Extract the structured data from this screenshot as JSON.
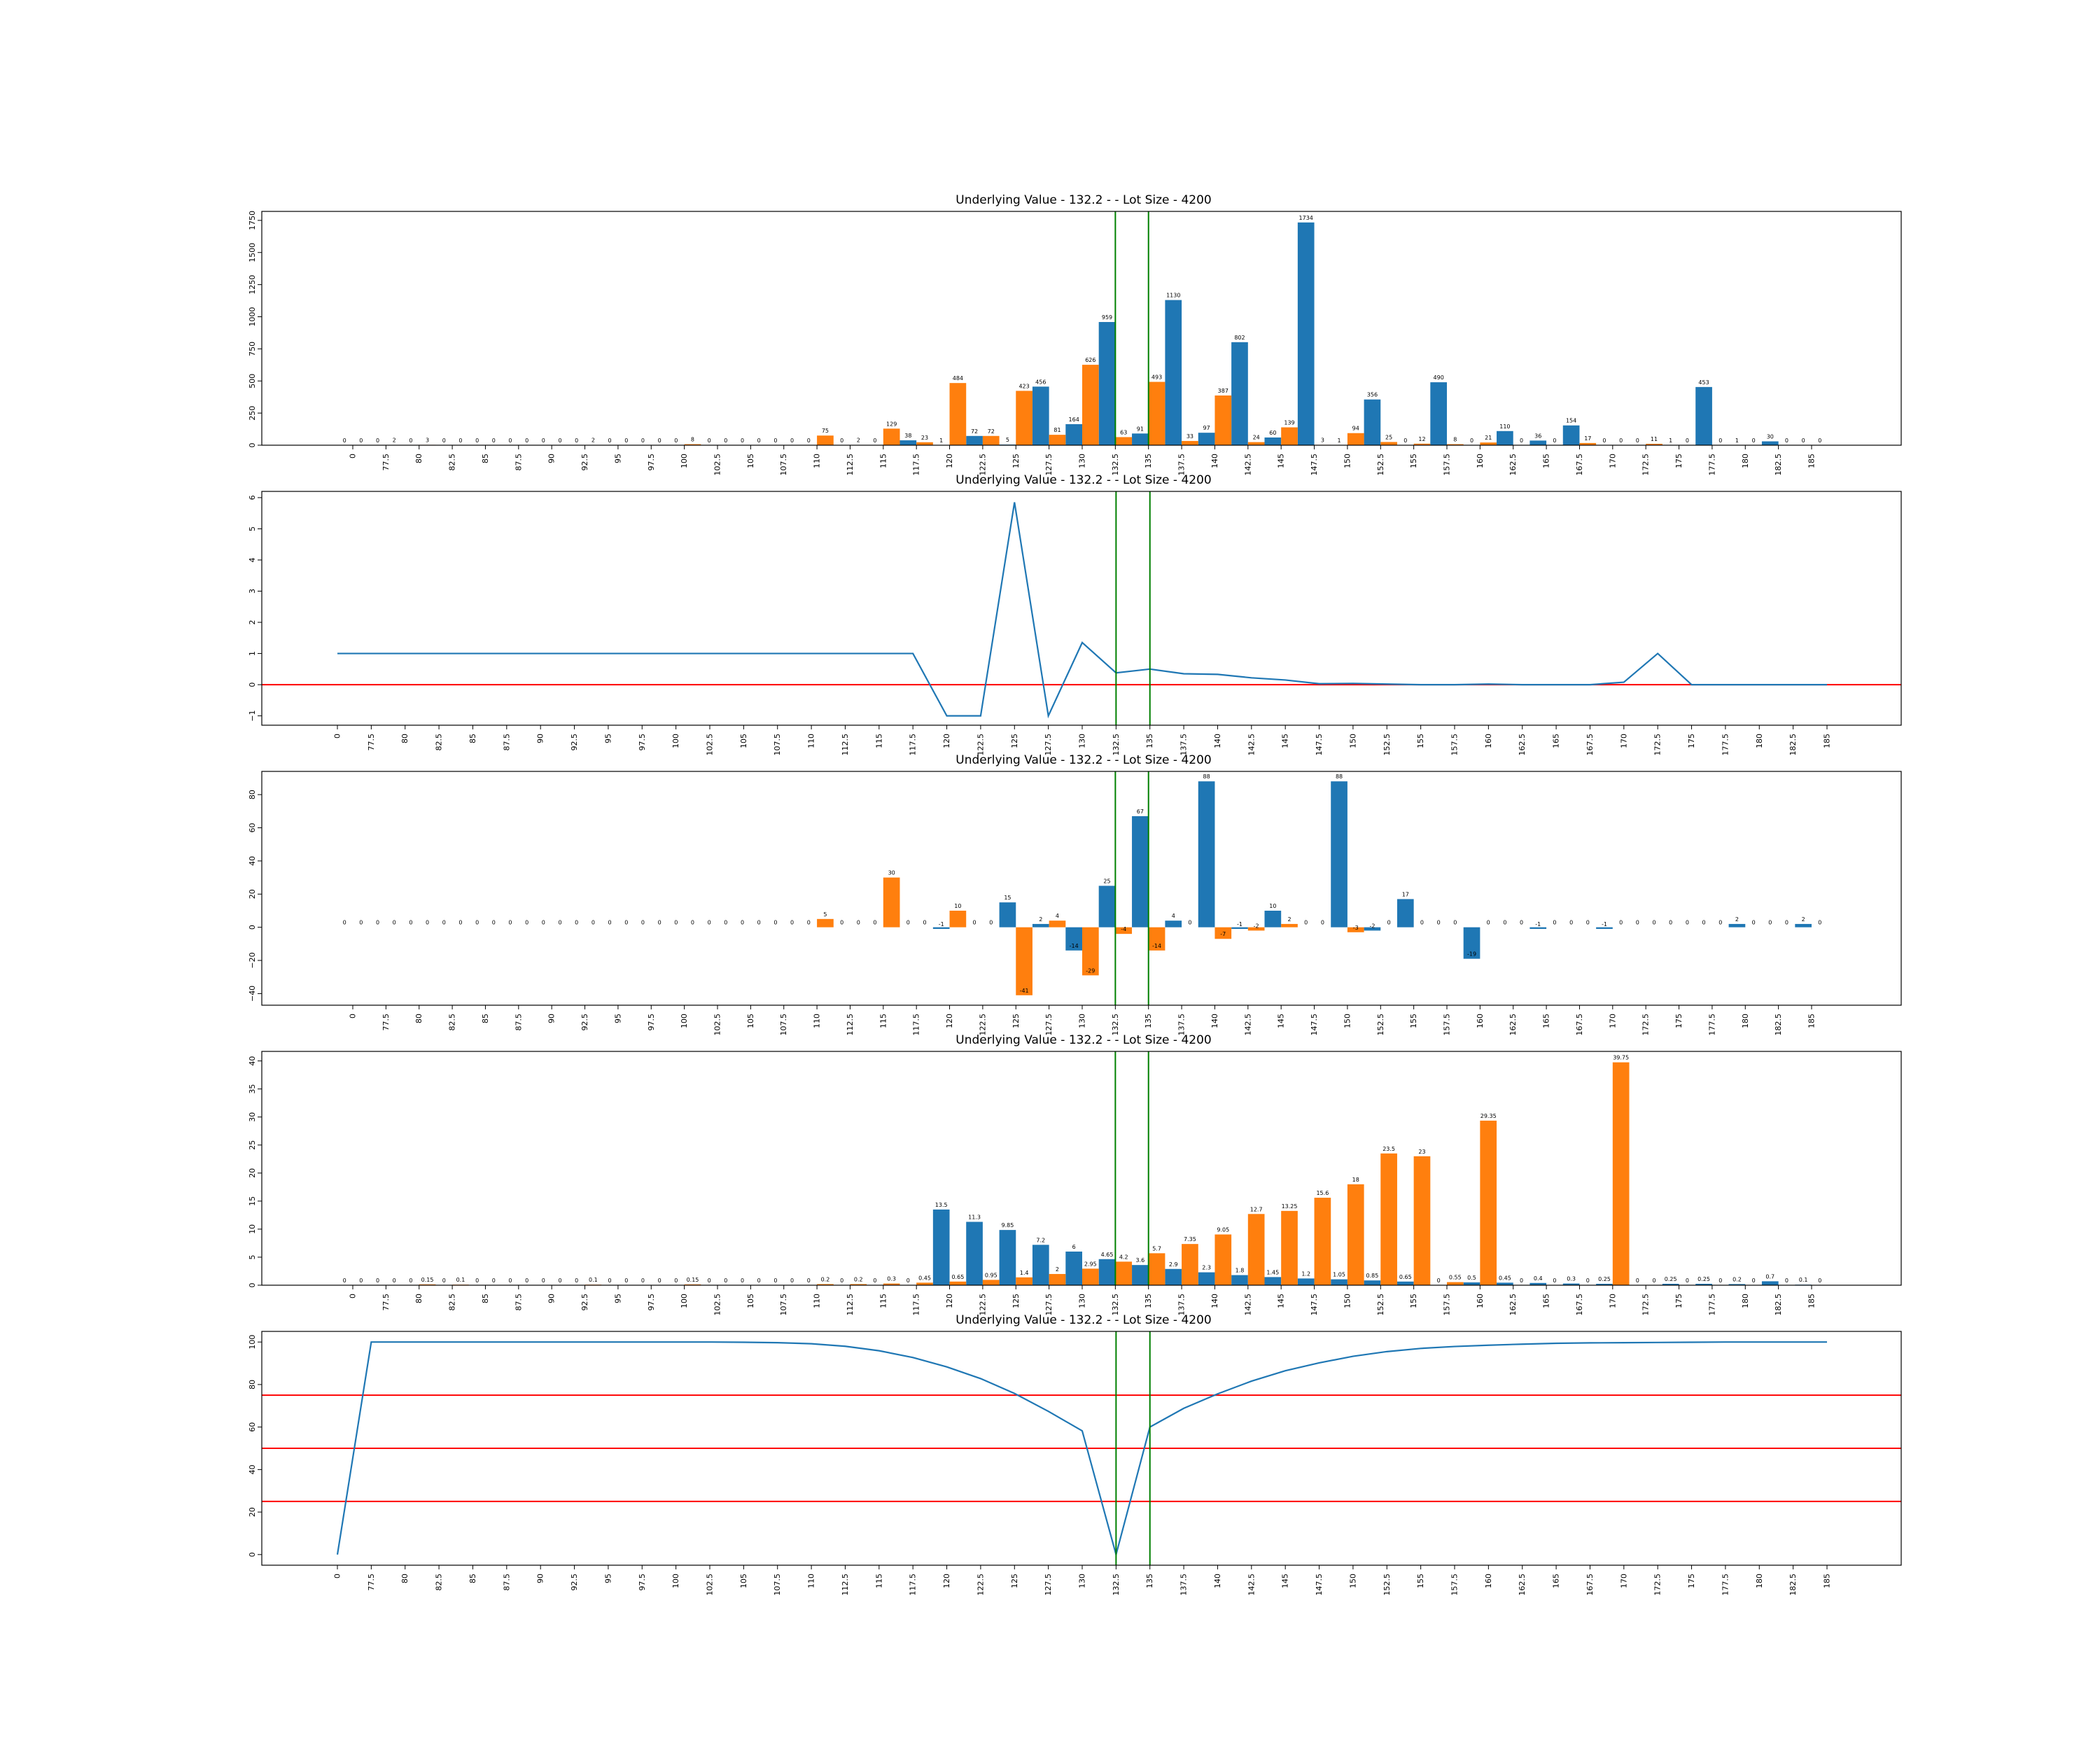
{
  "chart_data": [
    {
      "type": "bar",
      "title": "Underlying Value - 132.2 - - Lot Size - 4200",
      "categories": [
        "0",
        "77.5",
        "80",
        "82.5",
        "85",
        "87.5",
        "90",
        "92.5",
        "95",
        "97.5",
        "100",
        "102.5",
        "105",
        "107.5",
        "110",
        "112.5",
        "115",
        "117.5",
        "120",
        "122.5",
        "125",
        "127.5",
        "130",
        "132.5",
        "135",
        "137.5",
        "140",
        "142.5",
        "145",
        "147.5",
        "150",
        "152.5",
        "155",
        "157.5",
        "160",
        "162.5",
        "165",
        "167.5",
        "170",
        "172.5",
        "175",
        "177.5",
        "180",
        "182.5",
        "185"
      ],
      "yticks": [
        0,
        250,
        500,
        750,
        1000,
        1250,
        1500,
        1750
      ],
      "ylim": [
        0,
        1820
      ],
      "series": [
        {
          "color": "#1f77b4",
          "values": [
            0,
            0,
            0,
            0,
            0,
            0,
            0,
            0,
            0,
            0,
            0,
            0,
            0,
            0,
            0,
            0,
            0,
            38,
            1,
            72,
            5,
            456,
            164,
            959,
            91,
            1130,
            97,
            802,
            60,
            1734,
            1,
            356,
            0,
            490,
            0,
            110,
            36,
            154,
            0,
            0,
            1,
            453,
            1,
            30,
            0
          ]
        },
        {
          "color": "#ff7f0e",
          "values": [
            0,
            2,
            3,
            0,
            0,
            0,
            0,
            2,
            0,
            0,
            8,
            0,
            0,
            0,
            75,
            2,
            129,
            23,
            484,
            72,
            423,
            81,
            626,
            63,
            493,
            33,
            387,
            24,
            139,
            3,
            94,
            25,
            12,
            8,
            21,
            0,
            0,
            17,
            0,
            11,
            0,
            0,
            0,
            0,
            0
          ]
        }
      ],
      "vlines": [
        "132.5",
        "135"
      ]
    },
    {
      "type": "line",
      "title": "Underlying Value - 132.2 - - Lot Size - 4200",
      "x": [
        "0",
        "77.5",
        "80",
        "82.5",
        "85",
        "87.5",
        "90",
        "92.5",
        "95",
        "97.5",
        "100",
        "102.5",
        "105",
        "107.5",
        "110",
        "112.5",
        "115",
        "117.5",
        "120",
        "122.5",
        "125",
        "127.5",
        "130",
        "132.5",
        "135",
        "137.5",
        "140",
        "142.5",
        "145",
        "147.5",
        "150",
        "152.5",
        "155",
        "157.5",
        "160",
        "162.5",
        "165",
        "167.5",
        "170",
        "172.5",
        "175",
        "177.5",
        "180",
        "182.5",
        "185"
      ],
      "yticks": [
        -1,
        0,
        1,
        2,
        3,
        4,
        5,
        6
      ],
      "ylim": [
        -1.3,
        6.2
      ],
      "series": [
        {
          "color": "#1f77b4",
          "values": [
            1,
            1,
            1,
            1,
            1,
            1,
            1,
            1,
            1,
            1,
            1,
            1,
            1,
            1,
            1,
            1,
            1,
            1,
            -1,
            -1,
            5.85,
            -1,
            1.35,
            0.38,
            0.5,
            0.35,
            0.33,
            0.22,
            0.15,
            0.03,
            0.04,
            0.02,
            0.0,
            0.0,
            0.02,
            0.0,
            0.0,
            0.0,
            0.08,
            1.0,
            0.0,
            0.0,
            0.0,
            0.0,
            0.0
          ]
        }
      ],
      "hlines": [
        0
      ],
      "vlines": [
        "132.5",
        "135"
      ]
    },
    {
      "type": "bar",
      "title": "Underlying Value - 132.2 - - Lot Size - 4200",
      "categories": [
        "0",
        "77.5",
        "80",
        "82.5",
        "85",
        "87.5",
        "90",
        "92.5",
        "95",
        "97.5",
        "100",
        "102.5",
        "105",
        "107.5",
        "110",
        "112.5",
        "115",
        "117.5",
        "120",
        "122.5",
        "125",
        "127.5",
        "130",
        "132.5",
        "135",
        "137.5",
        "140",
        "142.5",
        "145",
        "147.5",
        "150",
        "152.5",
        "155",
        "157.5",
        "160",
        "162.5",
        "165",
        "167.5",
        "170",
        "172.5",
        "175",
        "177.5",
        "180",
        "182.5",
        "185"
      ],
      "yticks": [
        -40,
        -20,
        0,
        20,
        40,
        60,
        80
      ],
      "ylim": [
        -47,
        94
      ],
      "series": [
        {
          "color": "#1f77b4",
          "values": [
            0,
            0,
            0,
            0,
            0,
            0,
            0,
            0,
            0,
            0,
            0,
            0,
            0,
            0,
            0,
            0,
            0,
            0,
            -1,
            0,
            15,
            2,
            -14,
            25,
            67,
            4,
            88,
            -1,
            10,
            0,
            88,
            -2,
            17,
            0,
            -19,
            0,
            -1,
            0,
            -1,
            0,
            0,
            0,
            2,
            0,
            2
          ]
        },
        {
          "color": "#ff7f0e",
          "values": [
            0,
            0,
            0,
            0,
            0,
            0,
            0,
            0,
            0,
            0,
            0,
            0,
            0,
            0,
            5,
            0,
            30,
            0,
            10,
            0,
            -41,
            4,
            -29,
            -4,
            -14,
            0,
            -7,
            -2,
            2,
            0,
            -3,
            0,
            0,
            0,
            0,
            0,
            0,
            0,
            0,
            0,
            0,
            0,
            0,
            0,
            0
          ]
        }
      ],
      "vlines": [
        "132.5",
        "135"
      ]
    },
    {
      "type": "bar",
      "title": "Underlying Value - 132.2 - - Lot Size - 4200",
      "categories": [
        "0",
        "77.5",
        "80",
        "82.5",
        "85",
        "87.5",
        "90",
        "92.5",
        "95",
        "97.5",
        "100",
        "102.5",
        "105",
        "107.5",
        "110",
        "112.5",
        "115",
        "117.5",
        "120",
        "122.5",
        "125",
        "127.5",
        "130",
        "132.5",
        "135",
        "137.5",
        "140",
        "142.5",
        "145",
        "147.5",
        "150",
        "152.5",
        "155",
        "157.5",
        "160",
        "162.5",
        "165",
        "167.5",
        "170",
        "172.5",
        "175",
        "177.5",
        "180",
        "182.5",
        "185"
      ],
      "yticks": [
        0,
        5,
        10,
        15,
        20,
        25,
        30,
        35,
        40
      ],
      "ylim": [
        0,
        41.7
      ],
      "series": [
        {
          "color": "#1f77b4",
          "values": [
            0.0,
            0.0,
            0.0,
            0.0,
            0.0,
            0.0,
            0.0,
            0.0,
            0.0,
            0.0,
            0.0,
            0.0,
            0.0,
            0.0,
            0.0,
            0.0,
            0.0,
            0.0,
            13.5,
            11.3,
            9.85,
            7.2,
            6.0,
            4.65,
            3.6,
            2.9,
            2.3,
            1.8,
            1.45,
            1.2,
            1.05,
            0.85,
            0.65,
            0.0,
            0.5,
            0.45,
            0.4,
            0.3,
            0.25,
            0.0,
            0.25,
            0.25,
            0.2,
            0.7,
            0.1
          ]
        },
        {
          "color": "#ff7f0e",
          "values": [
            0.0,
            0.0,
            0.15,
            0.1,
            0.0,
            0.0,
            0.0,
            0.1,
            0.0,
            0.0,
            0.15,
            0.0,
            0.0,
            0.0,
            0.2,
            0.2,
            0.3,
            0.45,
            0.65,
            0.95,
            1.4,
            2.0,
            2.95,
            4.2,
            5.7,
            7.35,
            9.05,
            12.7,
            13.25,
            15.6,
            18.0,
            23.5,
            23.0,
            0.55,
            29.35,
            0.0,
            0.0,
            0.0,
            39.75,
            0.0,
            0.0,
            0.0,
            0.0,
            0.0,
            0.0
          ]
        }
      ],
      "vlines": [
        "132.5",
        "135"
      ]
    },
    {
      "type": "line",
      "title": "Underlying Value - 132.2 - - Lot Size - 4200",
      "x": [
        "0",
        "77.5",
        "80",
        "82.5",
        "85",
        "87.5",
        "90",
        "92.5",
        "95",
        "97.5",
        "100",
        "102.5",
        "105",
        "107.5",
        "110",
        "112.5",
        "115",
        "117.5",
        "120",
        "122.5",
        "125",
        "127.5",
        "130",
        "132.5",
        "135",
        "137.5",
        "140",
        "142.5",
        "145",
        "147.5",
        "150",
        "152.5",
        "155",
        "157.5",
        "160",
        "162.5",
        "165",
        "167.5",
        "170",
        "172.5",
        "175",
        "177.5",
        "180",
        "182.5",
        "185"
      ],
      "yticks": [
        0,
        20,
        40,
        60,
        80,
        100
      ],
      "ylim": [
        -5,
        105
      ],
      "series": [
        {
          "color": "#1f77b4",
          "values": [
            0,
            100,
            100,
            100,
            100,
            100,
            100,
            100,
            100,
            100,
            100,
            100,
            99.9,
            99.7,
            99.2,
            98,
            95.9,
            92.7,
            88.3,
            82.8,
            75.8,
            67.4,
            58.2,
            0,
            60,
            68.8,
            75.6,
            81.6,
            86.5,
            90.2,
            93.3,
            95.5,
            97,
            97.9,
            98.5,
            99,
            99.4,
            99.6,
            99.7,
            99.8,
            99.9,
            100,
            100,
            100,
            100
          ]
        }
      ],
      "hlines": [
        25,
        50,
        75
      ],
      "vlines": [
        "132.5",
        "135"
      ]
    }
  ]
}
